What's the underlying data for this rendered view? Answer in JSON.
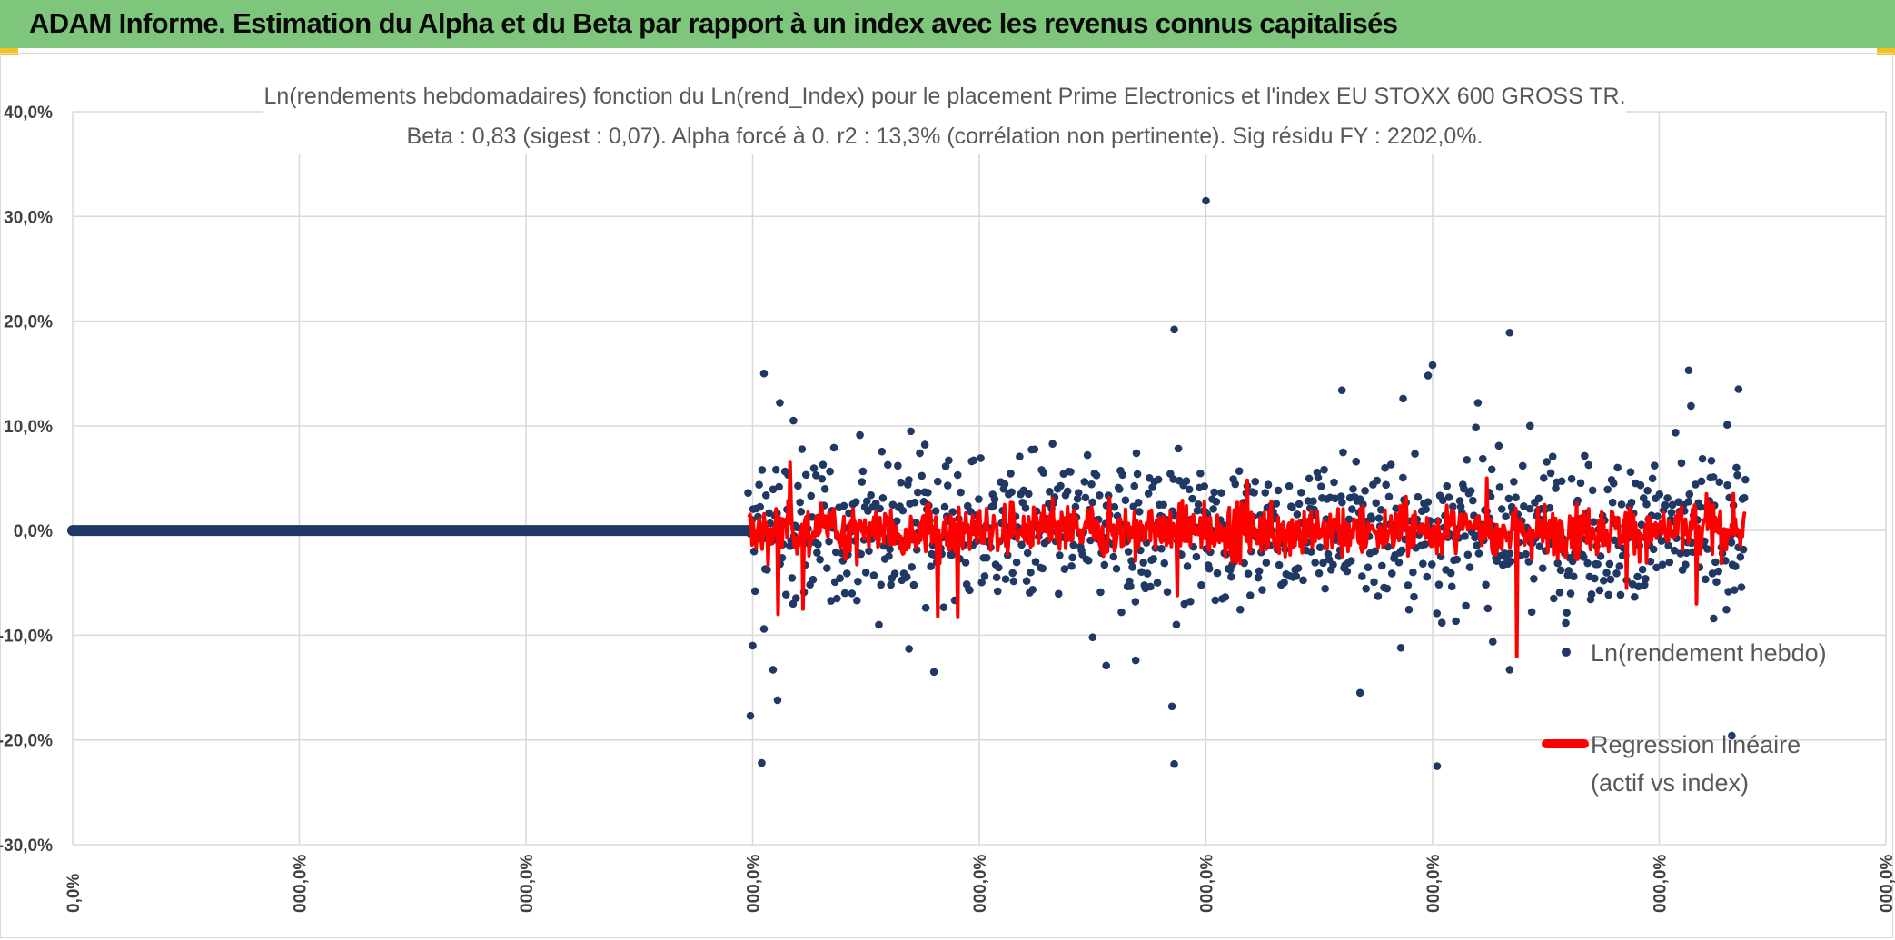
{
  "header": {
    "title": "ADAM Informe. Estimation du Alpha et du Beta par rapport à un index avec les revenus connus capitalisés"
  },
  "colors": {
    "banner": "#7dc67b",
    "points": "#1f3864",
    "regression": "#ff0000",
    "grid": "#d9d9d9",
    "corner": "#f5c21b"
  },
  "chart_data": {
    "type": "scatter",
    "title_line1": "Ln(rendements hebdomadaires) fonction du Ln(rend_Index) pour le placement Prime Electronics  et l'index EU STOXX 600 GROSS TR.",
    "title_line2": "Beta : 0,83 (sigest : 0,07). Alpha forcé à 0. r2 : 13,3% (corrélation non pertinente). Sig résidu FY : 2202,0%.",
    "ylim": [
      -30,
      40
    ],
    "y_ticks": [
      "40,0%",
      "30,0%",
      "20,0%",
      "10,0%",
      "0,0%",
      "-10,0%",
      "-20,0%",
      "-30,0%"
    ],
    "y_tick_values": [
      40,
      30,
      20,
      10,
      0,
      -10,
      -20,
      -30
    ],
    "x_ticks": [
      "0,0%",
      "000,0%",
      "000,0%",
      "000,0%",
      "000,0%",
      "000,0%",
      "000,0%",
      "000,0%",
      "000,0%"
    ],
    "legend": {
      "series1": "Ln(rendement hebdo)",
      "series2_line1": "Regression linéaire",
      "series2_line2": "(actif vs index)"
    },
    "flat_segment": {
      "x_start": 0,
      "x_end": 2.98,
      "y": 0
    },
    "outliers": [
      {
        "x": 3.05,
        "y": 15.0
      },
      {
        "x": 2.99,
        "y": -17.7
      },
      {
        "x": 3.04,
        "y": -22.2
      },
      {
        "x": 3.11,
        "y": -16.2
      },
      {
        "x": 3.09,
        "y": -13.3
      },
      {
        "x": 3.05,
        "y": -9.4
      },
      {
        "x": 3.12,
        "y": 12.2
      },
      {
        "x": 3.18,
        "y": 10.5
      },
      {
        "x": 3.0,
        "y": -11.0
      },
      {
        "x": 3.69,
        "y": -11.3
      },
      {
        "x": 3.8,
        "y": -13.5
      },
      {
        "x": 3.76,
        "y": 8.2
      },
      {
        "x": 5.0,
        "y": 31.5
      },
      {
        "x": 4.86,
        "y": 19.2
      },
      {
        "x": 4.85,
        "y": -16.8
      },
      {
        "x": 4.86,
        "y": -22.3
      },
      {
        "x": 4.69,
        "y": -12.4
      },
      {
        "x": 4.5,
        "y": -10.2
      },
      {
        "x": 4.56,
        "y": -12.9
      },
      {
        "x": 6.0,
        "y": 15.8
      },
      {
        "x": 5.98,
        "y": 14.8
      },
      {
        "x": 6.02,
        "y": -22.5
      },
      {
        "x": 6.34,
        "y": 18.9
      },
      {
        "x": 6.2,
        "y": 12.2
      },
      {
        "x": 6.34,
        "y": -13.3
      },
      {
        "x": 5.6,
        "y": 13.4
      },
      {
        "x": 5.68,
        "y": -15.5
      },
      {
        "x": 5.87,
        "y": 12.6
      },
      {
        "x": 5.86,
        "y": -11.2
      },
      {
        "x": 7.13,
        "y": 15.3
      },
      {
        "x": 7.14,
        "y": 11.9
      },
      {
        "x": 7.35,
        "y": 13.5
      },
      {
        "x": 7.3,
        "y": 10.1
      },
      {
        "x": 7.32,
        "y": -19.6
      },
      {
        "x": 7.24,
        "y": -8.4
      },
      {
        "x": 6.43,
        "y": 10.0
      }
    ],
    "scatter_range": {
      "x_start": 2.98,
      "x_end": 7.38,
      "n_points": 1000,
      "y_spread_percent": 3.3
    }
  }
}
